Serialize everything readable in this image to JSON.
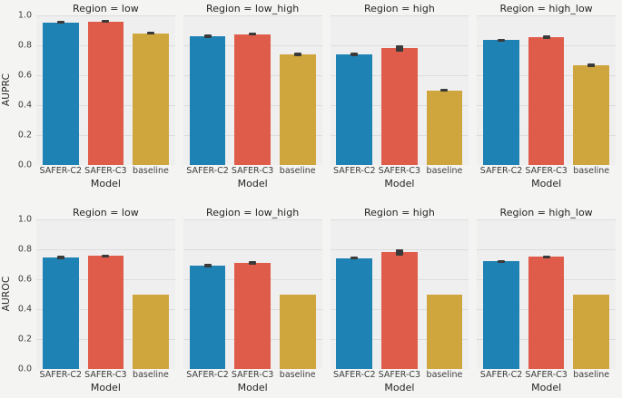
{
  "figure": {
    "background": "#f4f4f3",
    "panel_background": "#efefef",
    "gridline_color": "#dddddd",
    "errorbar_color": "#3a3a3a",
    "text_color": "#262626"
  },
  "chart_data": {
    "type": "bar",
    "layout": "facet-grid",
    "facet_col_variable": "Region",
    "xlabel": "Model",
    "categories": [
      "SAFER-C2",
      "SAFER-C3",
      "baseline"
    ],
    "bar_colors": [
      "#1f82b4",
      "#e05c4a",
      "#cfa63e"
    ],
    "ylim": [
      0.0,
      1.0
    ],
    "yticks": [
      "1.0",
      "0.8",
      "0.6",
      "0.4",
      "0.2",
      "0.0"
    ],
    "grid": true,
    "legend": "none",
    "error_bars": true,
    "rows": [
      {
        "ylabel": "AUPRC",
        "facets": [
          {
            "title": "Region = low",
            "values": [
              0.95,
              0.955,
              0.88
            ],
            "errors": [
              0.006,
              0.005,
              0.007
            ]
          },
          {
            "title": "Region = low_high",
            "values": [
              0.86,
              0.875,
              0.74
            ],
            "errors": [
              0.012,
              0.008,
              0.012
            ]
          },
          {
            "title": "Region = high",
            "values": [
              0.74,
              0.78,
              0.5
            ],
            "errors": [
              0.012,
              0.02,
              0.01
            ]
          },
          {
            "title": "Region = high_low",
            "values": [
              0.835,
              0.855,
              0.665
            ],
            "errors": [
              0.01,
              0.01,
              0.012
            ]
          }
        ]
      },
      {
        "ylabel": "AUROC",
        "facets": [
          {
            "title": "Region = low",
            "values": [
              0.745,
              0.755,
              0.5
            ],
            "errors": [
              0.01,
              0.008,
              0
            ]
          },
          {
            "title": "Region = low_high",
            "values": [
              0.69,
              0.71,
              0.5
            ],
            "errors": [
              0.012,
              0.01,
              0
            ]
          },
          {
            "title": "Region = high",
            "values": [
              0.74,
              0.78,
              0.5
            ],
            "errors": [
              0.008,
              0.02,
              0
            ]
          },
          {
            "title": "Region = high_low",
            "values": [
              0.72,
              0.75,
              0.5
            ],
            "errors": [
              0.01,
              0.01,
              0
            ]
          }
        ]
      }
    ]
  }
}
